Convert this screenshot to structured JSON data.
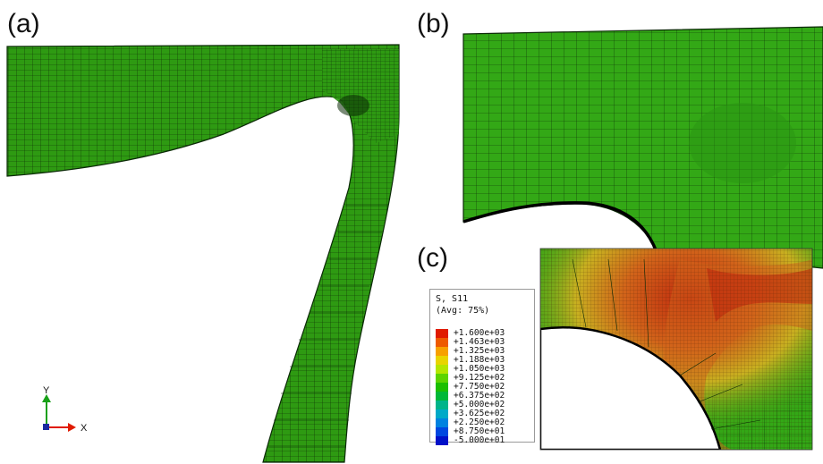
{
  "panels": {
    "a": "(a)",
    "b": "(b)",
    "c": "(c)"
  },
  "axes": {
    "x": "X",
    "y": "Y"
  },
  "legend": {
    "variable": "S, S11",
    "averaging": "(Avg: 75%)",
    "entries": [
      {
        "value": "+1.600e+03",
        "color": "#e01b00"
      },
      {
        "value": "+1.463e+03",
        "color": "#ee5a00"
      },
      {
        "value": "+1.325e+03",
        "color": "#f7a000"
      },
      {
        "value": "+1.188e+03",
        "color": "#e9d400"
      },
      {
        "value": "+1.050e+03",
        "color": "#b5e600"
      },
      {
        "value": "+9.125e+02",
        "color": "#5cd400"
      },
      {
        "value": "+7.750e+02",
        "color": "#1bbf00"
      },
      {
        "value": "+6.375e+02",
        "color": "#00b837"
      },
      {
        "value": "+5.000e+02",
        "color": "#00b48a"
      },
      {
        "value": "+3.625e+02",
        "color": "#00a9c8"
      },
      {
        "value": "+2.250e+02",
        "color": "#0082e0"
      },
      {
        "value": "+8.750e+01",
        "color": "#0047e0"
      },
      {
        "value": "-5.000e+01",
        "color": "#0010c8"
      }
    ]
  },
  "colors": {
    "mesh_fill": "#2e9a12",
    "mesh_line": "#0b2a06",
    "hot_red": "#c83a10",
    "hot_orange": "#d98a1a",
    "hot_yellow": "#c8c420"
  }
}
